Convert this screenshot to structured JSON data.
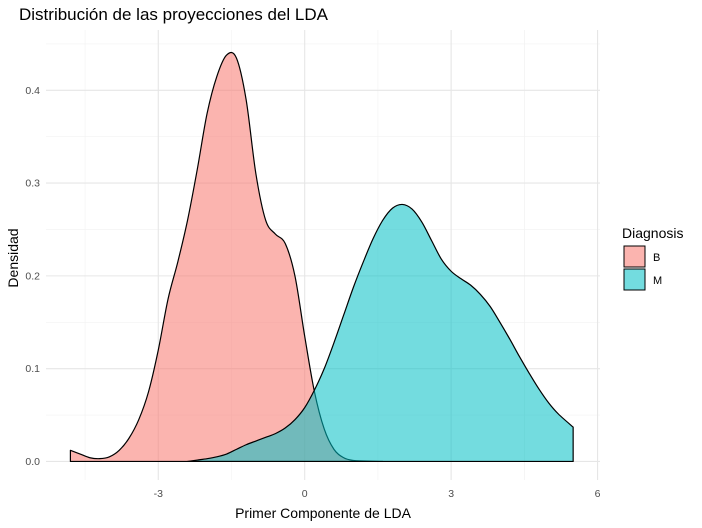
{
  "chart_data": {
    "type": "area",
    "title": "Distribución de las proyecciones del LDA",
    "xlabel": "Primer Componente de LDA",
    "ylabel": "Densidad",
    "xlim": [
      -5.3,
      6.05
    ],
    "ylim": [
      -0.02,
      0.465
    ],
    "x_ticks": [
      -3,
      0,
      3,
      6
    ],
    "x_tick_labels": [
      "-3",
      "0",
      "3",
      "6"
    ],
    "y_ticks": [
      0.0,
      0.1,
      0.2,
      0.3,
      0.4
    ],
    "y_tick_labels": [
      "0.0",
      "0.1",
      "0.2",
      "0.3",
      "0.4"
    ],
    "grid": true,
    "legend": {
      "title": "Diagnosis",
      "position": "right"
    },
    "series": [
      {
        "name": "B",
        "color": "#F8766D",
        "points": [
          [
            -4.8,
            0.012
          ],
          [
            -4.6,
            0.008
          ],
          [
            -4.4,
            0.004
          ],
          [
            -4.2,
            0.003
          ],
          [
            -4.0,
            0.005
          ],
          [
            -3.8,
            0.012
          ],
          [
            -3.6,
            0.025
          ],
          [
            -3.4,
            0.045
          ],
          [
            -3.2,
            0.075
          ],
          [
            -3.0,
            0.12
          ],
          [
            -2.8,
            0.175
          ],
          [
            -2.6,
            0.215
          ],
          [
            -2.4,
            0.26
          ],
          [
            -2.2,
            0.315
          ],
          [
            -2.0,
            0.375
          ],
          [
            -1.8,
            0.415
          ],
          [
            -1.6,
            0.438
          ],
          [
            -1.4,
            0.435
          ],
          [
            -1.2,
            0.39
          ],
          [
            -1.0,
            0.31
          ],
          [
            -0.8,
            0.26
          ],
          [
            -0.6,
            0.245
          ],
          [
            -0.4,
            0.235
          ],
          [
            -0.2,
            0.2
          ],
          [
            0.0,
            0.135
          ],
          [
            0.2,
            0.075
          ],
          [
            0.4,
            0.035
          ],
          [
            0.6,
            0.013
          ],
          [
            0.8,
            0.004
          ],
          [
            1.0,
            0.001
          ],
          [
            1.2,
            0.0005
          ],
          [
            1.6,
            0.0
          ]
        ]
      },
      {
        "name": "M",
        "color": "#00BFC4",
        "points": [
          [
            -2.4,
            0.0
          ],
          [
            -2.2,
            0.0015
          ],
          [
            -2.0,
            0.003
          ],
          [
            -1.8,
            0.005
          ],
          [
            -1.6,
            0.008
          ],
          [
            -1.4,
            0.013
          ],
          [
            -1.2,
            0.018
          ],
          [
            -1.0,
            0.022
          ],
          [
            -0.8,
            0.026
          ],
          [
            -0.6,
            0.03
          ],
          [
            -0.4,
            0.036
          ],
          [
            -0.2,
            0.045
          ],
          [
            0.0,
            0.058
          ],
          [
            0.2,
            0.077
          ],
          [
            0.4,
            0.1
          ],
          [
            0.6,
            0.128
          ],
          [
            0.8,
            0.158
          ],
          [
            1.0,
            0.188
          ],
          [
            1.2,
            0.215
          ],
          [
            1.4,
            0.24
          ],
          [
            1.6,
            0.26
          ],
          [
            1.8,
            0.273
          ],
          [
            2.0,
            0.277
          ],
          [
            2.2,
            0.272
          ],
          [
            2.4,
            0.258
          ],
          [
            2.6,
            0.238
          ],
          [
            2.8,
            0.218
          ],
          [
            3.0,
            0.205
          ],
          [
            3.2,
            0.197
          ],
          [
            3.4,
            0.19
          ],
          [
            3.6,
            0.18
          ],
          [
            3.8,
            0.167
          ],
          [
            4.0,
            0.15
          ],
          [
            4.2,
            0.132
          ],
          [
            4.4,
            0.113
          ],
          [
            4.6,
            0.095
          ],
          [
            4.8,
            0.078
          ],
          [
            5.0,
            0.063
          ],
          [
            5.2,
            0.051
          ],
          [
            5.5,
            0.037
          ]
        ]
      }
    ]
  }
}
